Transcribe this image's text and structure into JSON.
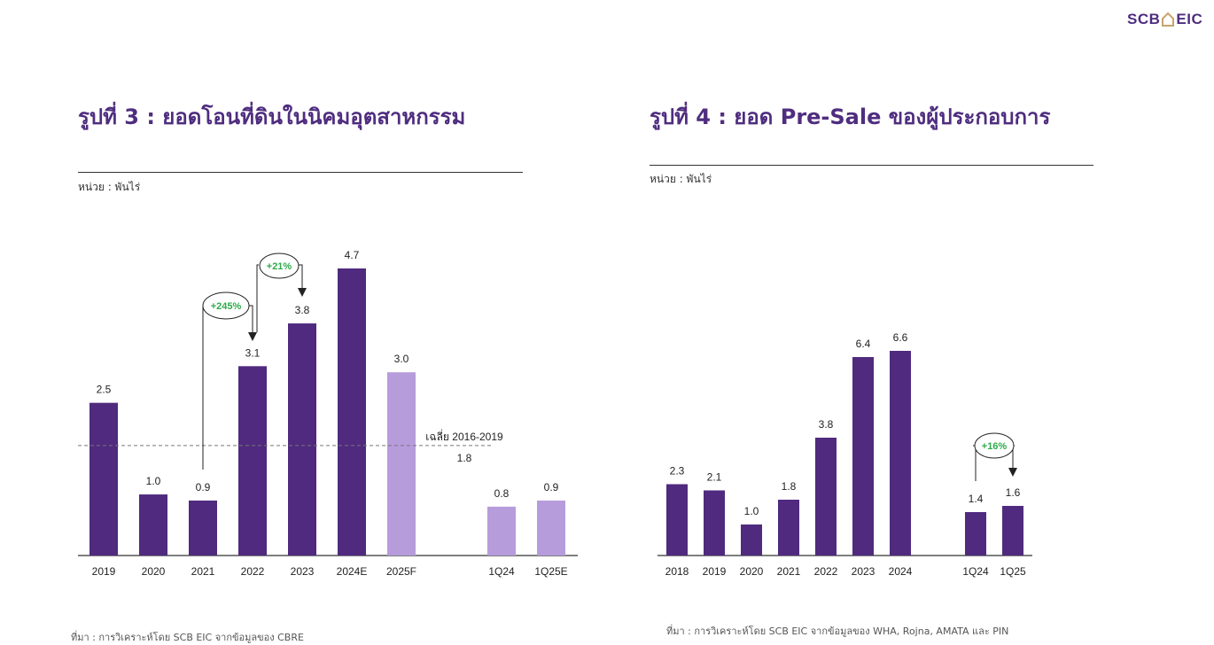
{
  "brand": {
    "left": "SCB",
    "right": "EIC",
    "color": "#4f2d7f"
  },
  "colors": {
    "primary": "#4f2a7e",
    "forecast": "#b79cdc",
    "growth": "#2eaa4a",
    "axis": "#333333"
  },
  "chart1": {
    "title": "รูปที่ 3 : ยอดโอนที่ดินในนิคมอุตสาหกรรม",
    "unit": "หน่วย : พันไร่",
    "source": "ที่มา : การวิเคราะห์โดย SCB EIC จากข้อมูลของ CBRE",
    "avg_label": "เฉลี่ย 2016-2019",
    "avg_value": "1.8",
    "growth": [
      {
        "label": "+245%",
        "from": "2021",
        "to": "2022"
      },
      {
        "label": "+21%",
        "from": "2022",
        "to": "2023"
      }
    ]
  },
  "chart2": {
    "title": "รูปที่ 4 : ยอด Pre-Sale ของผู้ประกอบการ",
    "unit": "หน่วย : พันไร่",
    "source": "ที่มา : การวิเคราะห์โดย SCB EIC จากข้อมูลของ WHA, Rojna, AMATA และ PIN",
    "growth": [
      {
        "label": "+16%",
        "from": "1Q24",
        "to": "1Q25"
      }
    ]
  },
  "chart_data": [
    {
      "type": "bar",
      "title": "รูปที่ 3 : ยอดโอนที่ดินในนิคมอุตสาหกรรม",
      "ylabel": "หน่วย : พันไร่",
      "categories": [
        "2019",
        "2020",
        "2021",
        "2022",
        "2023",
        "2024E",
        "2025F",
        "1Q24",
        "1Q25E"
      ],
      "values": [
        2.5,
        1.0,
        0.9,
        3.1,
        3.8,
        4.7,
        3.0,
        0.8,
        0.9
      ],
      "forecast": [
        false,
        false,
        false,
        false,
        false,
        false,
        true,
        true,
        true
      ],
      "reference_line": {
        "label": "เฉลี่ย 2016-2019",
        "value": 1.8
      },
      "ylim": [
        0,
        4.7
      ],
      "grid": false
    },
    {
      "type": "bar",
      "title": "รูปที่ 4 : ยอด Pre-Sale ของผู้ประกอบการ",
      "ylabel": "หน่วย : พันไร่",
      "categories": [
        "2018",
        "2019",
        "2020",
        "2021",
        "2022",
        "2023",
        "2024",
        "1Q24",
        "1Q25"
      ],
      "values": [
        2.3,
        2.1,
        1.0,
        1.8,
        3.8,
        6.4,
        6.6,
        1.4,
        1.6
      ],
      "forecast": [
        false,
        false,
        false,
        false,
        false,
        false,
        false,
        false,
        false
      ],
      "ylim": [
        0,
        6.6
      ],
      "grid": false
    }
  ]
}
